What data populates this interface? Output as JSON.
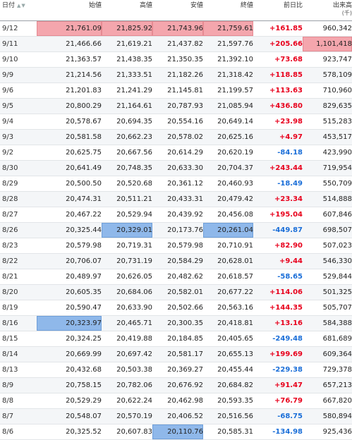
{
  "headers": {
    "date": "日付",
    "sort_icon": "▲▼",
    "open": "始値",
    "high": "高値",
    "low": "安値",
    "close": "終値",
    "change": "前日比",
    "volume": "出来高",
    "volume_unit": "(千)"
  },
  "colors": {
    "up": "#e8001c",
    "down": "#1a6ed8",
    "highlight_high": "#f4a6ad",
    "highlight_low": "#8fb8ea"
  },
  "rows": [
    {
      "date": "9/12",
      "open": "21,761.09",
      "high": "21,825.92",
      "low": "21,743.96",
      "close": "21,759.61",
      "change": "+161.85",
      "volume": "960,342"
    },
    {
      "date": "9/11",
      "open": "21,466.66",
      "high": "21,619.21",
      "low": "21,437.82",
      "close": "21,597.76",
      "change": "+205.66",
      "volume": "1,101,418"
    },
    {
      "date": "9/10",
      "open": "21,363.57",
      "high": "21,438.35",
      "low": "21,350.35",
      "close": "21,392.10",
      "change": "+73.68",
      "volume": "923,747"
    },
    {
      "date": "9/9",
      "open": "21,214.56",
      "high": "21,333.51",
      "low": "21,182.26",
      "close": "21,318.42",
      "change": "+118.85",
      "volume": "578,109"
    },
    {
      "date": "9/6",
      "open": "21,201.83",
      "high": "21,241.29",
      "low": "21,145.81",
      "close": "21,199.57",
      "change": "+113.63",
      "volume": "710,960"
    },
    {
      "date": "9/5",
      "open": "20,800.29",
      "high": "21,164.61",
      "low": "20,787.93",
      "close": "21,085.94",
      "change": "+436.80",
      "volume": "829,635"
    },
    {
      "date": "9/4",
      "open": "20,578.67",
      "high": "20,694.35",
      "low": "20,554.16",
      "close": "20,649.14",
      "change": "+23.98",
      "volume": "515,283"
    },
    {
      "date": "9/3",
      "open": "20,581.58",
      "high": "20,662.23",
      "low": "20,578.02",
      "close": "20,625.16",
      "change": "+4.97",
      "volume": "453,517"
    },
    {
      "date": "9/2",
      "open": "20,625.75",
      "high": "20,667.56",
      "low": "20,614.29",
      "close": "20,620.19",
      "change": "-84.18",
      "volume": "423,990"
    },
    {
      "date": "8/30",
      "open": "20,641.49",
      "high": "20,748.35",
      "low": "20,633.30",
      "close": "20,704.37",
      "change": "+243.44",
      "volume": "719,954"
    },
    {
      "date": "8/29",
      "open": "20,500.50",
      "high": "20,520.68",
      "low": "20,361.12",
      "close": "20,460.93",
      "change": "-18.49",
      "volume": "550,709"
    },
    {
      "date": "8/28",
      "open": "20,474.31",
      "high": "20,511.21",
      "low": "20,433.31",
      "close": "20,479.42",
      "change": "+23.34",
      "volume": "514,888"
    },
    {
      "date": "8/27",
      "open": "20,467.22",
      "high": "20,529.94",
      "low": "20,439.92",
      "close": "20,456.08",
      "change": "+195.04",
      "volume": "607,846"
    },
    {
      "date": "8/26",
      "open": "20,325.44",
      "high": "20,329.01",
      "low": "20,173.76",
      "close": "20,261.04",
      "change": "-449.87",
      "volume": "698,507"
    },
    {
      "date": "8/23",
      "open": "20,579.98",
      "high": "20,719.31",
      "low": "20,579.98",
      "close": "20,710.91",
      "change": "+82.90",
      "volume": "507,023"
    },
    {
      "date": "8/22",
      "open": "20,706.07",
      "high": "20,731.19",
      "low": "20,584.29",
      "close": "20,628.01",
      "change": "+9.44",
      "volume": "546,330"
    },
    {
      "date": "8/21",
      "open": "20,489.97",
      "high": "20,626.05",
      "low": "20,482.62",
      "close": "20,618.57",
      "change": "-58.65",
      "volume": "529,844"
    },
    {
      "date": "8/20",
      "open": "20,605.35",
      "high": "20,684.06",
      "low": "20,582.01",
      "close": "20,677.22",
      "change": "+114.06",
      "volume": "501,325"
    },
    {
      "date": "8/19",
      "open": "20,590.47",
      "high": "20,633.90",
      "low": "20,502.66",
      "close": "20,563.16",
      "change": "+144.35",
      "volume": "505,707"
    },
    {
      "date": "8/16",
      "open": "20,323.97",
      "high": "20,465.71",
      "low": "20,300.35",
      "close": "20,418.81",
      "change": "+13.16",
      "volume": "584,388"
    },
    {
      "date": "8/15",
      "open": "20,324.25",
      "high": "20,419.88",
      "low": "20,184.85",
      "close": "20,405.65",
      "change": "-249.48",
      "volume": "681,689"
    },
    {
      "date": "8/14",
      "open": "20,669.99",
      "high": "20,697.42",
      "low": "20,581.17",
      "close": "20,655.13",
      "change": "+199.69",
      "volume": "609,364"
    },
    {
      "date": "8/13",
      "open": "20,432.68",
      "high": "20,503.38",
      "low": "20,369.27",
      "close": "20,455.44",
      "change": "-229.38",
      "volume": "729,378"
    },
    {
      "date": "8/9",
      "open": "20,758.15",
      "high": "20,782.06",
      "low": "20,676.92",
      "close": "20,684.82",
      "change": "+91.47",
      "volume": "657,213"
    },
    {
      "date": "8/8",
      "open": "20,529.29",
      "high": "20,622.24",
      "low": "20,462.98",
      "close": "20,593.35",
      "change": "+76.79",
      "volume": "667,820"
    },
    {
      "date": "8/7",
      "open": "20,548.07",
      "high": "20,570.19",
      "low": "20,406.52",
      "close": "20,516.56",
      "change": "-68.75",
      "volume": "580,894"
    },
    {
      "date": "8/6",
      "open": "20,325.52",
      "high": "20,607.83",
      "low": "20,110.76",
      "close": "20,585.31",
      "change": "-134.98",
      "volume": "925,436"
    }
  ],
  "highlight_high_cells": [
    [
      0,
      "open"
    ],
    [
      0,
      "high"
    ],
    [
      0,
      "low"
    ],
    [
      0,
      "close"
    ],
    [
      1,
      "volume"
    ]
  ],
  "highlight_low_cells": [
    [
      13,
      "high"
    ],
    [
      13,
      "close"
    ],
    [
      19,
      "open"
    ],
    [
      26,
      "low"
    ]
  ]
}
